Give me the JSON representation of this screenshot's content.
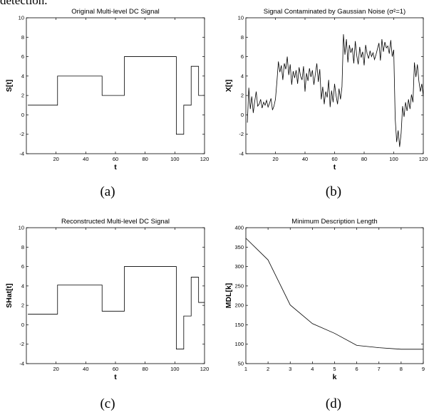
{
  "page": {
    "top_text": "detection."
  },
  "chart_data": [
    {
      "type": "line",
      "title": "Original Multi-level DC Signal",
      "xlabel": "t",
      "ylabel": "S[t]",
      "caption": "(a)",
      "xlim": [
        0,
        120
      ],
      "ylim": [
        -4,
        10
      ],
      "xticks": [
        20,
        40,
        60,
        80,
        100,
        120
      ],
      "yticks": [
        -4,
        -2,
        0,
        2,
        4,
        6,
        8,
        10
      ],
      "step": true,
      "series": [
        {
          "x": [
            1,
            21,
            21,
            51,
            51,
            66,
            66,
            101,
            101,
            106,
            106,
            111,
            111,
            116,
            116,
            120
          ],
          "y": [
            1,
            1,
            4,
            4,
            2,
            2,
            6,
            6,
            -2,
            -2,
            1,
            1,
            5,
            5,
            2,
            2
          ]
        }
      ]
    },
    {
      "type": "line",
      "title": "Signal Contaminated by Gaussian Noise (σ²=1)",
      "xlabel": "t",
      "ylabel": "X[t]",
      "caption": "(b)",
      "xlim": [
        0,
        120
      ],
      "ylim": [
        -4,
        10
      ],
      "xticks": [
        20,
        40,
        60,
        80,
        100,
        120
      ],
      "yticks": [
        -4,
        -2,
        0,
        2,
        4,
        6,
        8,
        10
      ],
      "series": [
        {
          "x": [
            1,
            2,
            3,
            4,
            5,
            6,
            7,
            8,
            9,
            10,
            11,
            12,
            13,
            14,
            15,
            16,
            17,
            18,
            19,
            20,
            21,
            22,
            23,
            24,
            25,
            26,
            27,
            28,
            29,
            30,
            31,
            32,
            33,
            34,
            35,
            36,
            37,
            38,
            39,
            40,
            41,
            42,
            43,
            44,
            45,
            46,
            47,
            48,
            49,
            50,
            51,
            52,
            53,
            54,
            55,
            56,
            57,
            58,
            59,
            60,
            61,
            62,
            63,
            64,
            65,
            66,
            67,
            68,
            69,
            70,
            71,
            72,
            73,
            74,
            75,
            76,
            77,
            78,
            79,
            80,
            81,
            82,
            83,
            84,
            85,
            86,
            87,
            88,
            89,
            90,
            91,
            92,
            93,
            94,
            95,
            96,
            97,
            98,
            99,
            100,
            101,
            102,
            103,
            104,
            105,
            106,
            107,
            108,
            109,
            110,
            111,
            112,
            113,
            114,
            115,
            116,
            117,
            118,
            119,
            120
          ],
          "y": [
            -0.8,
            2.8,
            0.6,
            1.9,
            0.2,
            1.4,
            2.4,
            0.9,
            1.1,
            1.6,
            0.7,
            1.3,
            1.0,
            1.5,
            0.8,
            1.2,
            1.7,
            0.5,
            0.9,
            1.6,
            3.4,
            5.5,
            4.4,
            5.1,
            3.6,
            5.3,
            4.7,
            6.0,
            4.1,
            5.2,
            3.1,
            4.5,
            3.8,
            4.6,
            3.2,
            4.9,
            4.0,
            3.6,
            5.0,
            2.4,
            4.3,
            3.5,
            4.8,
            3.9,
            4.6,
            3.1,
            4.2,
            5.3,
            3.4,
            4.7,
            1.6,
            2.9,
            1.1,
            2.4,
            1.8,
            3.6,
            0.8,
            2.5,
            1.3,
            3.2,
            2.0,
            1.1,
            2.7,
            1.6,
            2.9,
            8.3,
            6.2,
            7.8,
            5.4,
            7.2,
            6.4,
            6.9,
            5.3,
            7.6,
            6.1,
            5.2,
            7.0,
            5.9,
            6.5,
            5.1,
            7.2,
            6.3,
            5.8,
            6.6,
            6.0,
            6.4,
            5.7,
            6.2,
            6.8,
            7.4,
            5.6,
            7.8,
            6.5,
            7.5,
            6.9,
            7.1,
            6.3,
            7.7,
            6.0,
            6.7,
            -0.4,
            -2.8,
            -1.6,
            -3.3,
            -1.9,
            0.9,
            -0.2,
            1.3,
            0.4,
            1.6,
            0.6,
            2.1,
            1.3,
            5.4,
            3.9,
            5.2,
            3.5,
            2.4,
            3.2,
            1.9
          ]
        }
      ]
    },
    {
      "type": "line",
      "title": "Reconstructed Multi-level DC Signal",
      "xlabel": "t",
      "ylabel": "SHat[t]",
      "caption": "(c)",
      "xlim": [
        0,
        120
      ],
      "ylim": [
        -4,
        10
      ],
      "xticks": [
        20,
        40,
        60,
        80,
        100,
        120
      ],
      "yticks": [
        -4,
        -2,
        0,
        2,
        4,
        6,
        8,
        10
      ],
      "step": true,
      "series": [
        {
          "x": [
            1,
            21,
            21,
            51,
            51,
            66,
            66,
            101,
            101,
            106,
            106,
            111,
            111,
            116,
            116,
            120
          ],
          "y": [
            1.1,
            1.1,
            4.1,
            4.1,
            1.4,
            1.4,
            6.0,
            6.0,
            -2.5,
            -2.5,
            0.9,
            0.9,
            4.9,
            4.9,
            2.3,
            2.3
          ]
        }
      ]
    },
    {
      "type": "line",
      "title": "Minimum Description Length",
      "xlabel": "k",
      "ylabel": "MDL[k]",
      "caption": "(d)",
      "xlim": [
        1,
        9
      ],
      "ylim": [
        50,
        400
      ],
      "xticks": [
        1,
        2,
        3,
        4,
        5,
        6,
        7,
        8,
        9
      ],
      "yticks": [
        50,
        100,
        150,
        200,
        250,
        300,
        350,
        400
      ],
      "series": [
        {
          "x": [
            1,
            2,
            3,
            4,
            5,
            6,
            7,
            8,
            9
          ],
          "y": [
            373,
            317,
            201,
            153,
            128,
            97,
            91,
            87,
            87
          ]
        }
      ]
    }
  ]
}
